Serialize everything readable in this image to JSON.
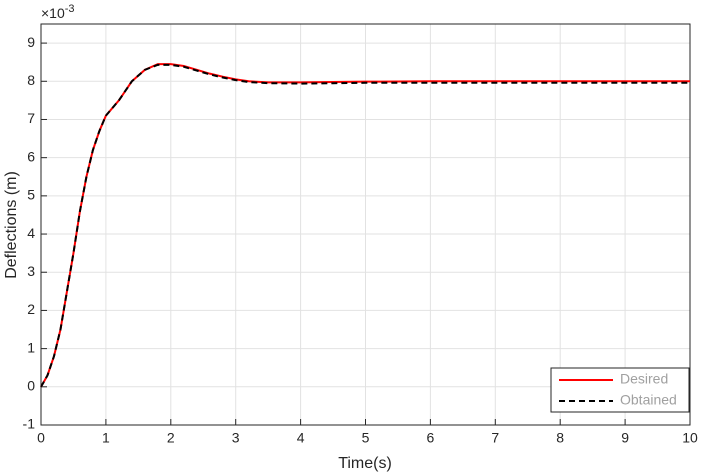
{
  "chart_data": {
    "type": "line",
    "x_label": "Time(s)",
    "y_label": "Deflections (m)",
    "y_multiplier": {
      "base": "×10",
      "exponent": "-3"
    },
    "x": [
      0,
      0.1,
      0.2,
      0.3,
      0.4,
      0.5,
      0.6,
      0.7,
      0.8,
      0.9,
      1.0,
      1.2,
      1.4,
      1.6,
      1.8,
      2.0,
      2.2,
      2.4,
      2.6,
      2.8,
      3.0,
      3.2,
      3.5,
      4,
      4.5,
      5,
      6,
      7,
      8,
      9,
      10
    ],
    "series": [
      {
        "name": "Desired",
        "color": "#ff0000",
        "dash": false,
        "values": [
          0,
          0.3,
          0.8,
          1.5,
          2.5,
          3.5,
          4.6,
          5.5,
          6.2,
          6.7,
          7.1,
          7.5,
          8.0,
          8.3,
          8.45,
          8.45,
          8.4,
          8.3,
          8.2,
          8.12,
          8.05,
          8.0,
          7.97,
          7.97,
          7.98,
          7.99,
          8.0,
          8.0,
          8.0,
          8.0,
          8.0
        ]
      },
      {
        "name": "Obtained",
        "color": "#000000",
        "dash": true,
        "values": [
          0,
          0.3,
          0.8,
          1.5,
          2.5,
          3.5,
          4.6,
          5.5,
          6.2,
          6.7,
          7.1,
          7.5,
          8.0,
          8.3,
          8.43,
          8.43,
          8.38,
          8.28,
          8.18,
          8.1,
          8.03,
          7.98,
          7.95,
          7.94,
          7.95,
          7.96,
          7.96,
          7.96,
          7.96,
          7.96,
          7.96
        ]
      }
    ],
    "xlim": [
      0,
      10
    ],
    "xticks": [
      0,
      1,
      2,
      3,
      4,
      5,
      6,
      7,
      8,
      9,
      10
    ],
    "ylim": [
      -1,
      9.5
    ],
    "yticks": [
      -1,
      0,
      1,
      2,
      3,
      4,
      5,
      6,
      7,
      8,
      9
    ],
    "grid": true,
    "legend": "lower right"
  }
}
